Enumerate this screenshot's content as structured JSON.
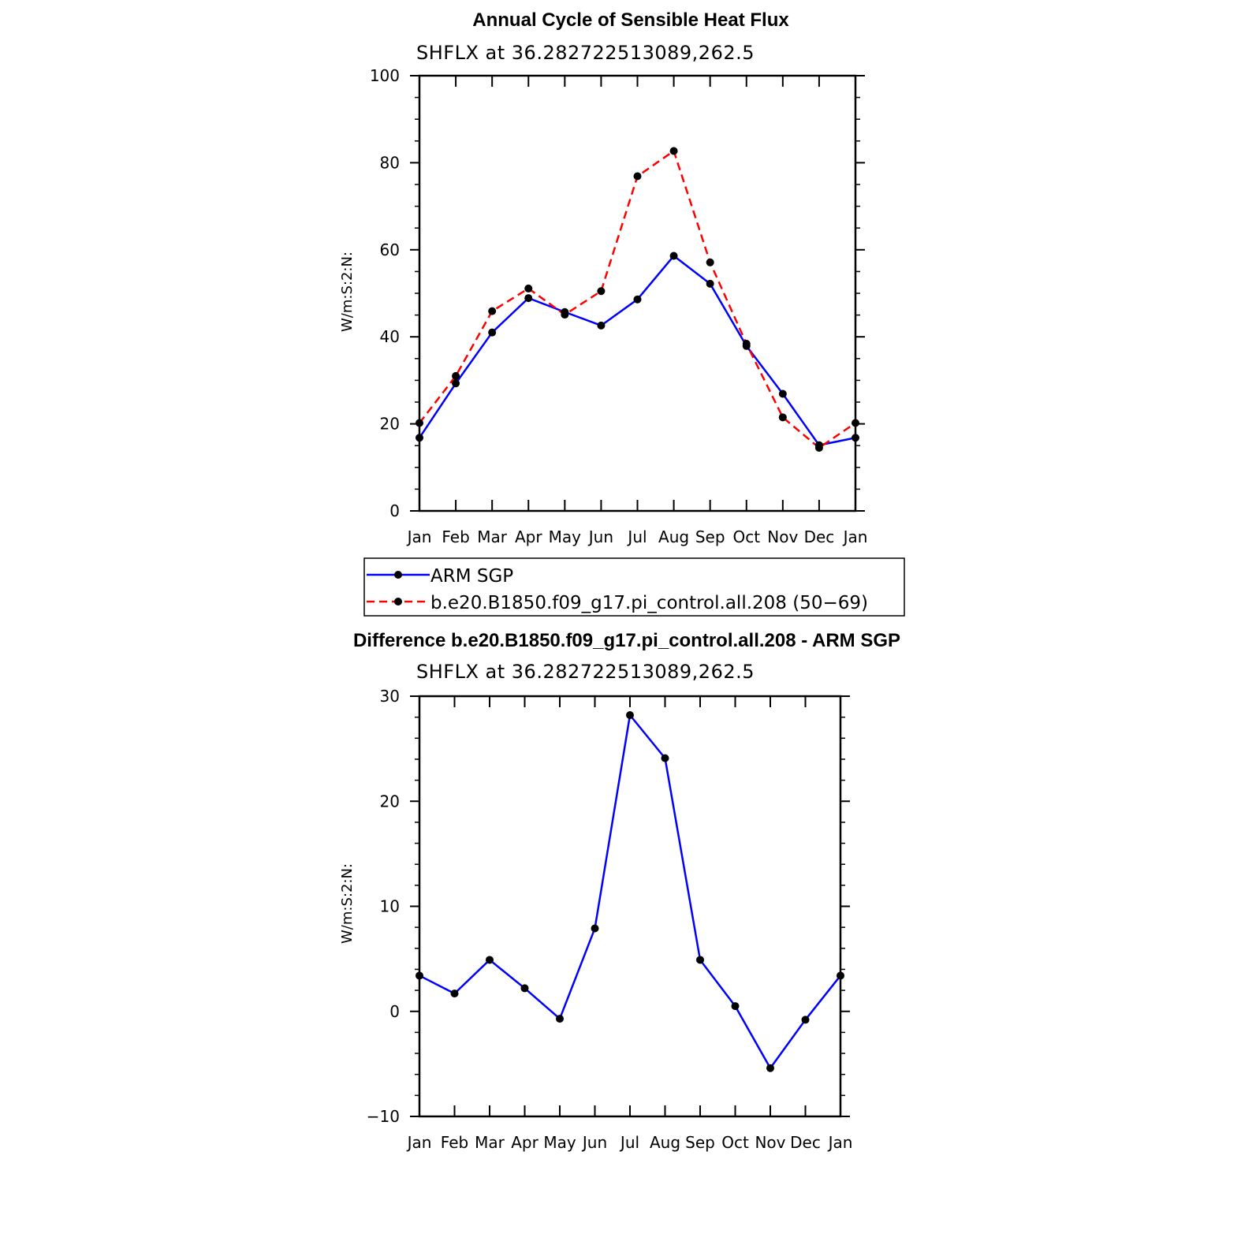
{
  "chart_data": [
    {
      "type": "line",
      "title": "Annual Cycle of Sensible Heat Flux",
      "subtitle": "SHFLX  at  36.282722513089,262.5",
      "xlabel": "",
      "ylabel": "W/m:S:2:N:",
      "categories": [
        "Jan",
        "Feb",
        "Mar",
        "Apr",
        "May",
        "Jun",
        "Jul",
        "Aug",
        "Sep",
        "Oct",
        "Nov",
        "Dec",
        "Jan"
      ],
      "ylim": [
        0,
        100
      ],
      "yticks": [
        0,
        20,
        40,
        60,
        80,
        100
      ],
      "series": [
        {
          "name": "ARM SGP",
          "color": "#0000ff",
          "dash": "solid",
          "values": [
            16.8,
            29.3,
            41.0,
            48.9,
            45.7,
            42.6,
            48.6,
            58.6,
            52.2,
            37.9,
            26.9,
            15.1,
            16.8
          ]
        },
        {
          "name": "b.e20.B1850.f09_g17.pi_control.all.208 (50−69)",
          "color": "#ff0000",
          "dash": "dashed",
          "values": [
            20.2,
            31.0,
            45.9,
            51.1,
            45.1,
            50.5,
            76.9,
            82.7,
            57.1,
            38.4,
            21.5,
            14.5,
            20.2
          ]
        }
      ],
      "legend_position": "bottom"
    },
    {
      "type": "line",
      "title": "Difference b.e20.B1850.f09_g17.pi_control.all.208 - ARM SGP",
      "subtitle": "SHFLX  at  36.282722513089,262.5",
      "xlabel": "",
      "ylabel": "W/m:S:2:N:",
      "categories": [
        "Jan",
        "Feb",
        "Mar",
        "Apr",
        "May",
        "Jun",
        "Jul",
        "Aug",
        "Sep",
        "Oct",
        "Nov",
        "Dec",
        "Jan"
      ],
      "ylim": [
        -10,
        30
      ],
      "yticks": [
        -10,
        0,
        10,
        20,
        30
      ],
      "ytick_labels": [
        "−10",
        "0",
        "10",
        "20",
        "30"
      ],
      "series": [
        {
          "name": "Difference",
          "color": "#0000ff",
          "dash": "solid",
          "values": [
            3.4,
            1.7,
            4.9,
            2.2,
            -0.7,
            7.9,
            28.2,
            24.1,
            4.9,
            0.5,
            -5.4,
            -0.8,
            3.4
          ]
        }
      ]
    }
  ]
}
